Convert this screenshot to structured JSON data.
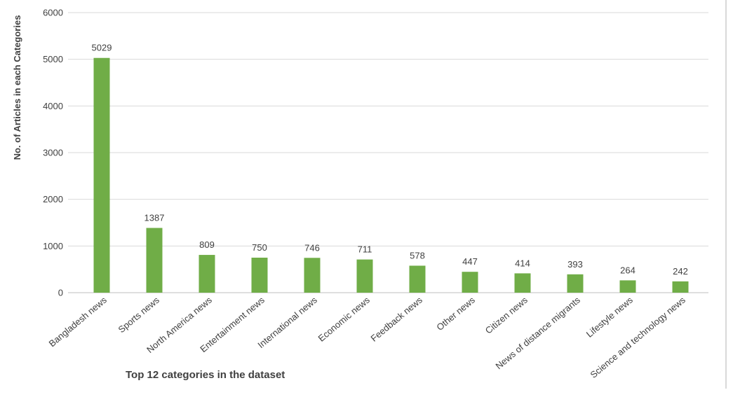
{
  "chart_data": {
    "type": "bar",
    "title": "",
    "xlabel": "Top 12 categories in the dataset",
    "ylabel": "No. of Articles in each Categories",
    "categories": [
      "Bangladesh news",
      "Sports news",
      "North America news",
      "Entertainment news",
      "International news",
      "Economic news",
      "Feedback news",
      "Other news",
      "Citizen news",
      "News of distance migrants",
      "Lifestyle news",
      "Science and technology news"
    ],
    "values": [
      5029,
      1387,
      809,
      750,
      746,
      711,
      578,
      447,
      414,
      393,
      264,
      242
    ],
    "ylim": [
      0,
      6000
    ],
    "yticks": [
      0,
      1000,
      2000,
      3000,
      4000,
      5000,
      6000
    ],
    "grid": true,
    "legend": "none",
    "data_labels": true,
    "bar_color": "#70ad47",
    "grid_color": "#d9d9d9",
    "text_color": "#404040"
  }
}
